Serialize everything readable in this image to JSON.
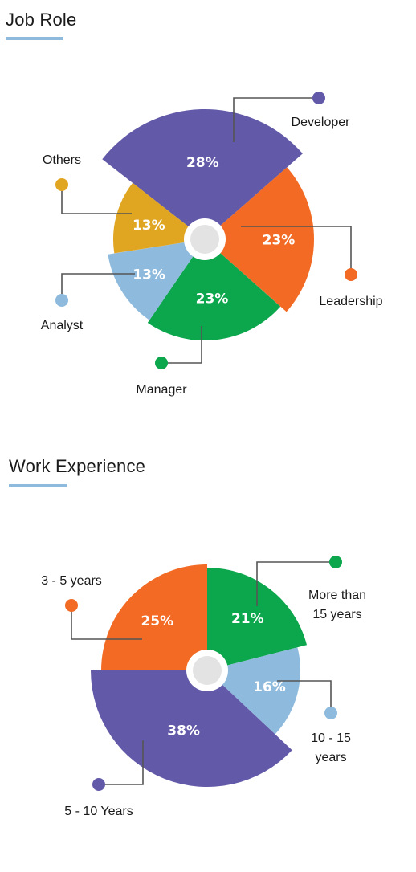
{
  "colors": {
    "developer": "#625aa8",
    "leadership": "#f26a23",
    "manager": "#0ca74d",
    "analyst": "#8ebadd",
    "others": "#e0a622",
    "accent_underline": "#8ebadd",
    "hub_ring": "#ffffff",
    "hub_fill": "#e3e3e3",
    "leader": "#555555"
  },
  "chart_data": [
    {
      "type": "pie",
      "title": "Job Role",
      "slices": [
        {
          "label": "Developer",
          "value": 28,
          "display": "28%",
          "color": "#625aa8"
        },
        {
          "label": "Leadership",
          "value": 23,
          "display": "23%",
          "color": "#f26a23"
        },
        {
          "label": "Manager",
          "value": 23,
          "display": "23%",
          "color": "#0ca74d"
        },
        {
          "label": "Analyst",
          "value": 13,
          "display": "13%",
          "color": "#8ebadd"
        },
        {
          "label": "Others",
          "value": 13,
          "display": "13%",
          "color": "#e0a622"
        }
      ]
    },
    {
      "type": "pie",
      "title": "Work Experience",
      "slices": [
        {
          "label": "More than 15 years",
          "label_lines": [
            "More than",
            "15 years"
          ],
          "value": 21,
          "display": "21%",
          "color": "#0ca74d"
        },
        {
          "label": "10 - 15 years",
          "label_lines": [
            "10 - 15",
            "years"
          ],
          "value": 16,
          "display": "16%",
          "color": "#8ebadd"
        },
        {
          "label": "5 - 10 Years",
          "label_lines": [
            "5 - 10 Years"
          ],
          "value": 38,
          "display": "38%",
          "color": "#625aa8"
        },
        {
          "label": "3 - 5 years",
          "label_lines": [
            "3 - 5 years"
          ],
          "value": 25,
          "display": "25%",
          "color": "#f26a23"
        }
      ]
    }
  ]
}
